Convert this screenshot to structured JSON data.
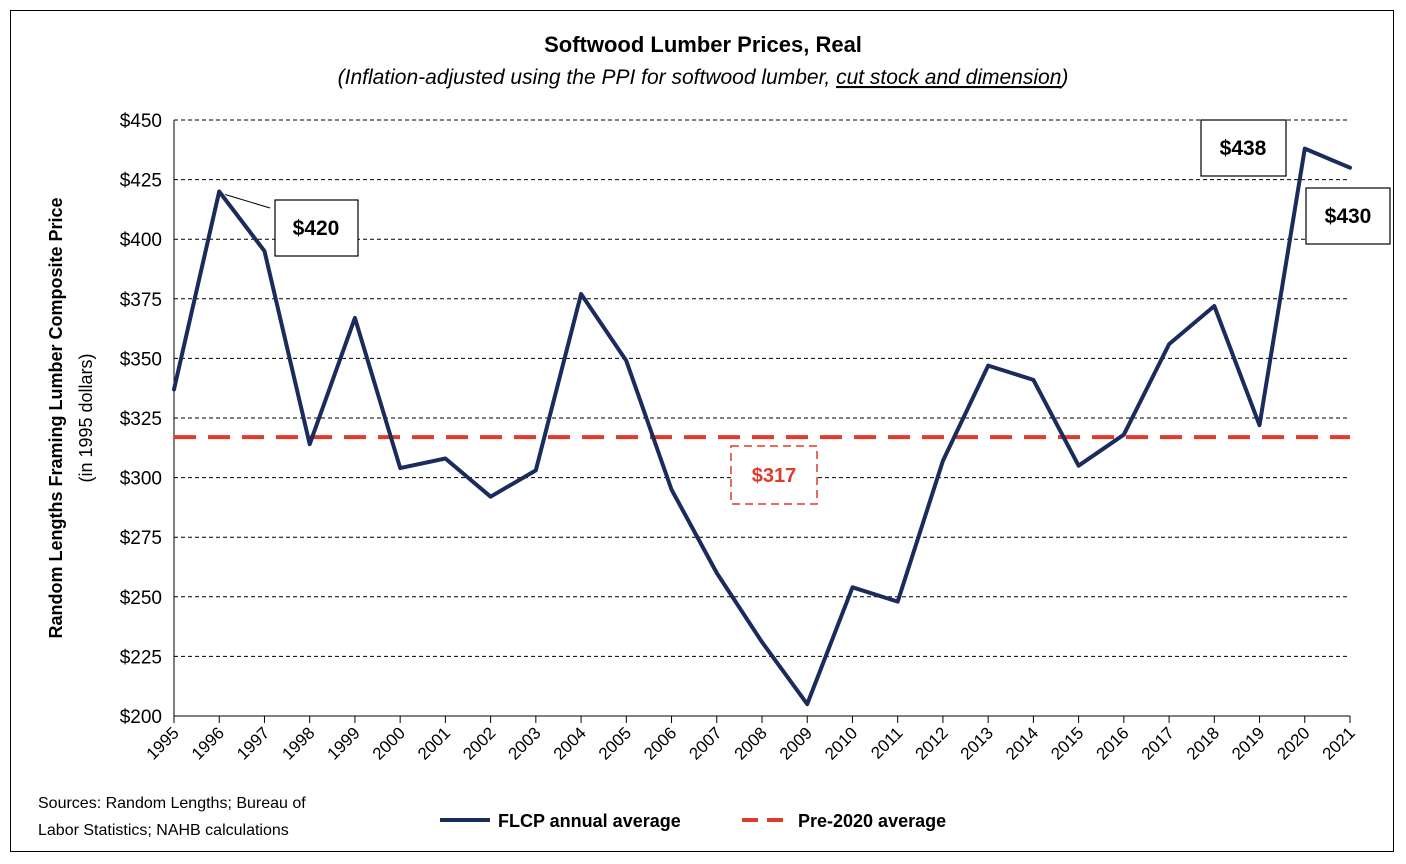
{
  "chart_data": {
    "type": "line",
    "title": "Softwood Lumber Prices, Real",
    "subtitle_prefix": "(Inflation-adjusted using the PPI for softwood lumber, ",
    "subtitle_underlined": "cut stock and dimension",
    "subtitle_suffix": ")",
    "ylabel": "Random Lengths Framing Lumber Composite Price",
    "ylabel_sub": "(in 1995 dollars)",
    "xlabel": "",
    "ylim": [
      200,
      450
    ],
    "yticks": [
      "$200",
      "$225",
      "$250",
      "$275",
      "$300",
      "$325",
      "$350",
      "$375",
      "$400",
      "$425",
      "$450"
    ],
    "ytick_values": [
      200,
      225,
      250,
      275,
      300,
      325,
      350,
      375,
      400,
      425,
      450
    ],
    "categories": [
      "1995",
      "1996",
      "1997",
      "1998",
      "1999",
      "2000",
      "2001",
      "2002",
      "2003",
      "2004",
      "2005",
      "2006",
      "2007",
      "2008",
      "2009",
      "2010",
      "2011",
      "2012",
      "2013",
      "2014",
      "2015",
      "2016",
      "2017",
      "2018",
      "2019",
      "2020",
      "2021"
    ],
    "series": [
      {
        "name": "FLCP annual average",
        "color": "#1a2b5c",
        "values": [
          337,
          420,
          395,
          314,
          367,
          304,
          308,
          292,
          303,
          377,
          349,
          295,
          260,
          231,
          205,
          254,
          248,
          307,
          347,
          341,
          305,
          318,
          356,
          372,
          322,
          438,
          430
        ]
      },
      {
        "name": "Pre-2020 average",
        "color": "#e03a2c",
        "style": "dashed",
        "value": 317
      }
    ],
    "annotations": [
      {
        "text": "$420",
        "category": "1996",
        "value": 420
      },
      {
        "text": "$438",
        "category": "2020",
        "value": 438
      },
      {
        "text": "$430",
        "category": "2021",
        "value": 430
      },
      {
        "text": "$317",
        "value": 317
      }
    ],
    "grid": "horizontal dashed",
    "legend_placement": "bottom"
  },
  "sources": {
    "line1": "Sources: Random Lengths; Bureau of",
    "line2": "Labor Statistics; NAHB calculations"
  }
}
